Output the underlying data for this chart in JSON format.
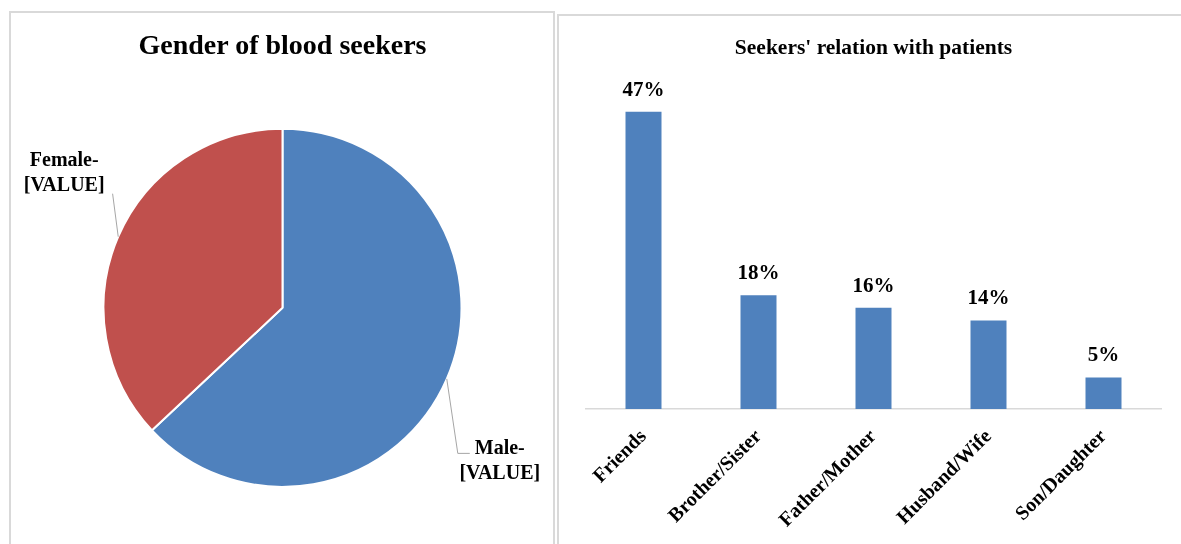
{
  "chart_data": [
    {
      "type": "pie",
      "title": "Gender of blood seekers",
      "categories": [
        "Male-",
        "Female-"
      ],
      "values": [
        63,
        37
      ],
      "colors": [
        "#4f81bd",
        "#c0504d"
      ],
      "value_labels": [
        "[VALUE]",
        "[VALUE]"
      ]
    },
    {
      "type": "bar",
      "title": "Seekers' relation with patients",
      "categories": [
        "Friends",
        "Brother/Sister",
        "Father/Mother",
        "Husband/Wife",
        "Son/Daughter"
      ],
      "values": [
        47,
        18,
        16,
        14,
        5
      ],
      "color": "#4f81bd",
      "value_labels": [
        "47%",
        "18%",
        "16%",
        "14%",
        "5%"
      ]
    }
  ]
}
